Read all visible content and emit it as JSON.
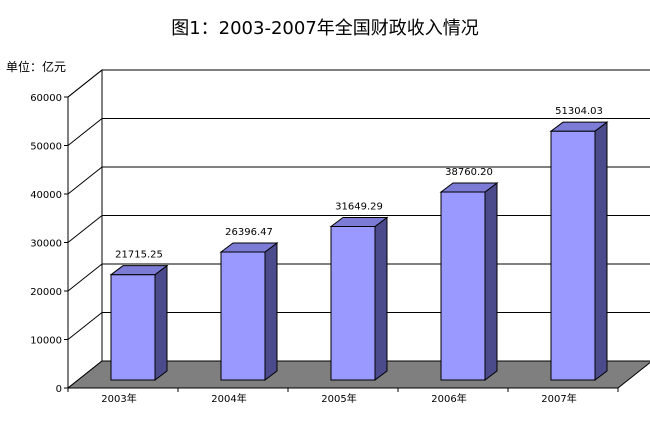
{
  "title": "图1：2003-2007年全国财政收入情况",
  "unit_label": "单位：亿元",
  "chart_data": {
    "type": "bar",
    "title": "图1：2003-2007年全国财政收入情况",
    "categories": [
      "2003年",
      "2004年",
      "2005年",
      "2006年",
      "2007年"
    ],
    "values": [
      21715.25,
      26396.47,
      31649.29,
      38760.2,
      51304.03
    ],
    "data_labels": [
      "21715.25",
      "26396.47",
      "31649.29",
      "38760.20",
      "51304.03"
    ],
    "y_ticks": [
      "0",
      "10000",
      "20000",
      "30000",
      "40000",
      "50000",
      "60000"
    ],
    "ylabel": "单位：亿元",
    "xlabel": "",
    "ylim": [
      0,
      60000
    ],
    "grid": true,
    "legend": "none",
    "colors": {
      "bar_front": "#9999ff",
      "bar_top": "#7c7cd6",
      "bar_side": "#4b4b8c",
      "floor": "#7f7f7f",
      "grid": "#000000"
    }
  }
}
